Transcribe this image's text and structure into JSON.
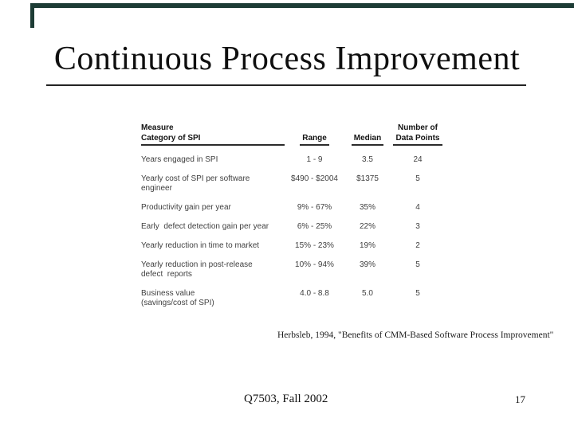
{
  "slide": {
    "title": "Continuous Process Improvement",
    "citation": "Herbsleb, 1994, \"Benefits of CMM-Based Software Process Improvement\"",
    "footer": {
      "course": "Q7503, Fall 2002",
      "page_number": "17"
    },
    "frame_color": "#1d3c35"
  },
  "table": {
    "headers": {
      "measure_line1": "Measure",
      "measure_line2": "Category of SPI",
      "range": "Range",
      "median": "Median",
      "points_line1": "Number of",
      "points_line2": "Data Points"
    },
    "rows": [
      {
        "measure": "Years engaged in SPI",
        "range": "1 - 9",
        "median": "3.5",
        "points": "24"
      },
      {
        "measure": [
          "Yearly cost of SPI per software",
          "engineer"
        ],
        "range": "$490 - $2004",
        "median": "$1375",
        "points": "5"
      },
      {
        "measure": "Productivity gain per year",
        "range": "9% - 67%",
        "median": "35%",
        "points": "4"
      },
      {
        "measure": "Early  defect detection gain per year",
        "range": "6% - 25%",
        "median": "22%",
        "points": "3"
      },
      {
        "measure": "Yearly reduction in time to market",
        "range": "15% - 23%",
        "median": "19%",
        "points": "2"
      },
      {
        "measure": [
          "Yearly reduction in post-release",
          "defect  reports"
        ],
        "range": "10% - 94%",
        "median": "39%",
        "points": "5"
      },
      {
        "measure": [
          "Business value",
          "(savings/cost of SPI)"
        ],
        "range": "4.0 - 8.8",
        "median": "5.0",
        "points": "5"
      }
    ]
  }
}
